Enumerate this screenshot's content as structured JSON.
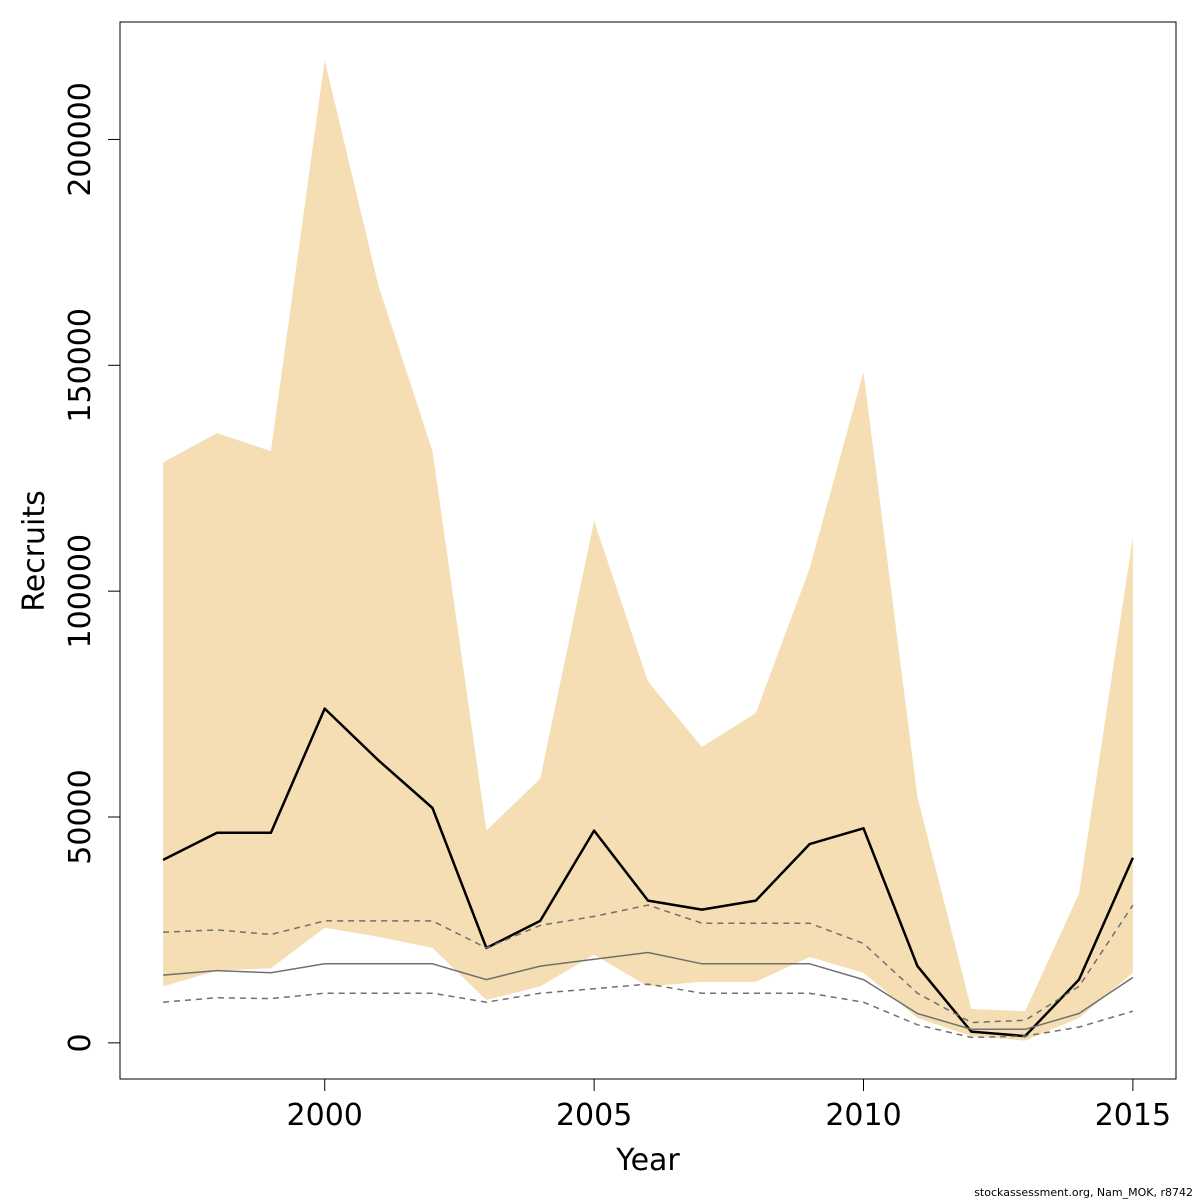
{
  "chart_data": {
    "type": "line",
    "xlabel": "Year",
    "ylabel": "Recruits",
    "xlim": [
      1996.2,
      2015.8
    ],
    "ylim": [
      -8000,
      226000
    ],
    "x_ticks": [
      2000,
      2005,
      2010,
      2015
    ],
    "y_ticks": [
      0,
      50000,
      100000,
      150000,
      200000
    ],
    "x_tick_labels": [
      "2000",
      "2005",
      "2010",
      "2015"
    ],
    "y_tick_labels": [
      "0",
      "50000",
      "100000",
      "150000",
      "200000"
    ],
    "grid": false,
    "years": [
      1997,
      1998,
      1999,
      2000,
      2001,
      2002,
      2003,
      2004,
      2005,
      2006,
      2007,
      2008,
      2009,
      2010,
      2011,
      2012,
      2013,
      2014,
      2015
    ],
    "band": {
      "upper": [
        128500,
        135000,
        131000,
        217500,
        167500,
        131000,
        47000,
        58500,
        115500,
        80000,
        65500,
        73000,
        105000,
        148500,
        54500,
        7500,
        7000,
        33000,
        112000
      ],
      "lower": [
        12500,
        16000,
        16500,
        25500,
        23500,
        21000,
        9500,
        12500,
        19500,
        12500,
        13500,
        13500,
        19000,
        15500,
        5500,
        1500,
        500,
        5500,
        15500
      ],
      "color": "#f5deb3"
    },
    "series": [
      {
        "style": "solid",
        "color": "#000000",
        "width": 2.5,
        "values": [
          40500,
          46500,
          46500,
          74000,
          62500,
          52000,
          21000,
          27000,
          47000,
          31500,
          29500,
          31500,
          44000,
          47500,
          17000,
          2500,
          1500,
          14000,
          41000
        ]
      },
      {
        "style": "dashed",
        "color": "#707070",
        "width": 1.5,
        "values": [
          24500,
          25000,
          24000,
          27000,
          27000,
          27000,
          21000,
          26000,
          28000,
          30500,
          26500,
          26500,
          26500,
          22000,
          11000,
          4500,
          5000,
          12500,
          30500
        ]
      },
      {
        "style": "solid",
        "color": "#707070",
        "width": 1.5,
        "values": [
          15000,
          16000,
          15500,
          17500,
          17500,
          17500,
          14000,
          17000,
          18500,
          20000,
          17500,
          17500,
          17500,
          14000,
          6500,
          3000,
          3000,
          6500,
          14500
        ]
      },
      {
        "style": "dashed",
        "color": "#707070",
        "width": 1.5,
        "values": [
          9000,
          10000,
          9800,
          11000,
          11000,
          11000,
          9000,
          11000,
          12000,
          13000,
          11000,
          11000,
          11000,
          9000,
          4000,
          1200,
          1500,
          3500,
          7000
        ]
      }
    ]
  },
  "footer": {
    "credit": "stockassessment.org, Nam_MOK, r8742"
  }
}
